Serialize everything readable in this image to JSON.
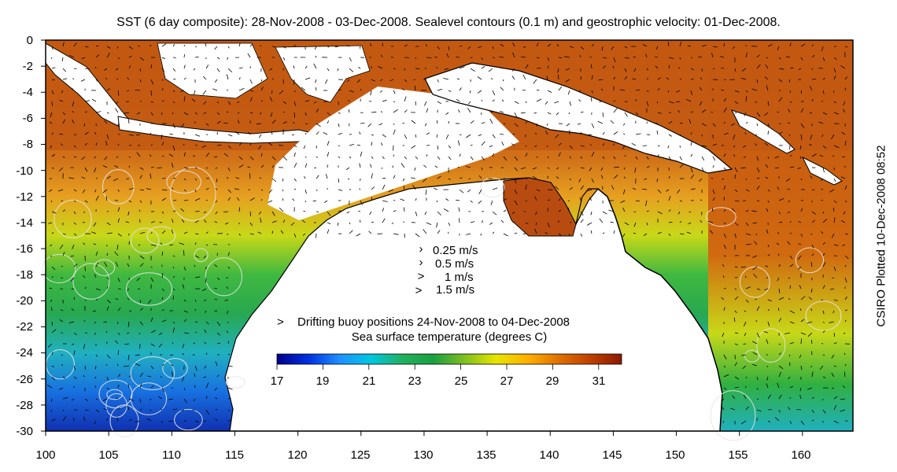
{
  "title": "SST (6 day composite): 28-Nov-2008 - 03-Dec-2008. Sealevel contours (0.1 m) and geostrophic velocity: 01-Dec-2008.",
  "credit": "CSIRO Plotted 10-Dec-2008 08:52",
  "axes": {
    "x_ticks": [
      "100",
      "105",
      "110",
      "115",
      "120",
      "125",
      "130",
      "135",
      "140",
      "145",
      "150",
      "155",
      "160"
    ],
    "y_ticks": [
      "0",
      "-2",
      "-4",
      "-6",
      "-8",
      "-10",
      "-12",
      "-14",
      "-16",
      "-18",
      "-20",
      "-22",
      "-24",
      "-26",
      "-28",
      "-30"
    ],
    "lon_range": [
      100,
      164
    ],
    "lat_range": [
      -30,
      0
    ]
  },
  "velocity_legend": [
    {
      "label": "0.25 m/s",
      "speed": 0.25
    },
    {
      "label": "0.5 m/s",
      "speed": 0.5
    },
    {
      "label": "1 m/s",
      "speed": 1
    },
    {
      "label": "1.5 m/s",
      "speed": 1.5
    }
  ],
  "buoy_legend": {
    "marker": ">",
    "label": "Drifting buoy positions 24-Nov-2008 to 04-Dec-2008",
    "color": "#e040e0"
  },
  "colorbar": {
    "title": "Sea surface temperature (degrees C)",
    "range": [
      17,
      32
    ],
    "ticks": [
      "17",
      "19",
      "21",
      "23",
      "25",
      "27",
      "29",
      "31"
    ],
    "colors": [
      "#00008b",
      "#0030e0",
      "#1e90ff",
      "#00c8e0",
      "#20b060",
      "#1aa040",
      "#80c020",
      "#e6e600",
      "#ffb000",
      "#e07000",
      "#c04000",
      "#8b1a00"
    ]
  },
  "colors": {
    "land": "#ffffff",
    "cloud": "#ffffff",
    "coast": "#000000",
    "contour": "#e6e6e6",
    "arrow": "#000000"
  }
}
